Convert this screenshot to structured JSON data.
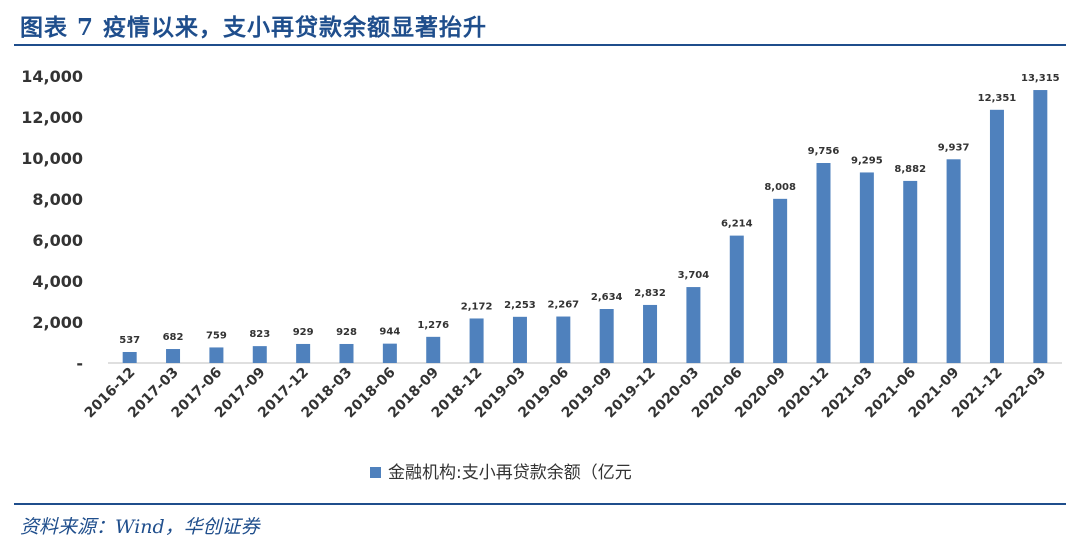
{
  "figure": {
    "title": "图表 7  疫情以来，支小再贷款余额显著抬升",
    "source": "资料来源：Wind，华创证券"
  },
  "chart_data": {
    "type": "bar",
    "title": "",
    "xlabel": "",
    "ylabel": "",
    "ylim": [
      0,
      14000
    ],
    "yticks": [
      0,
      2000,
      4000,
      6000,
      8000,
      10000,
      12000,
      14000
    ],
    "ytick_labels": [
      "-",
      "2,000",
      "4,000",
      "6,000",
      "8,000",
      "10,000",
      "12,000",
      "14,000"
    ],
    "categories": [
      "2016-12",
      "2017-03",
      "2017-06",
      "2017-09",
      "2017-12",
      "2018-03",
      "2018-06",
      "2018-09",
      "2018-12",
      "2019-03",
      "2019-06",
      "2019-09",
      "2019-12",
      "2020-03",
      "2020-06",
      "2020-09",
      "2020-12",
      "2021-03",
      "2021-06",
      "2021-09",
      "2021-12",
      "2022-03"
    ],
    "series": [
      {
        "name": "金融机构:支小再贷款余额（亿元",
        "color": "#4f81bd",
        "values": [
          537,
          682,
          759,
          823,
          929,
          928,
          944,
          1276,
          2172,
          2253,
          2267,
          2634,
          2832,
          3704,
          6214,
          8008,
          9756,
          9295,
          8882,
          9937,
          12351,
          13315
        ],
        "labels": [
          "537",
          "682",
          "759",
          "823",
          "929",
          "928",
          "944",
          "1,276",
          "2,172",
          "2,253",
          "2,267",
          "2,634",
          "2,832",
          "3,704",
          "6,214",
          "8,008",
          "9,756",
          "9,295",
          "8,882",
          "9,937",
          "12,351",
          "13,315"
        ]
      }
    ],
    "legend_position": "bottom"
  }
}
